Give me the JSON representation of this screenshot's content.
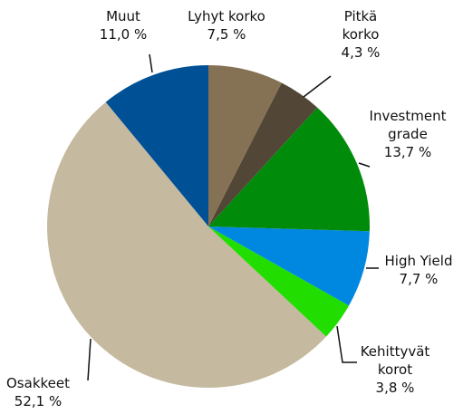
{
  "chart_data": {
    "type": "pie",
    "categories": [
      "Lyhyt korko",
      "Pitkä korko",
      "Investment grade",
      "High Yield",
      "Kehittyvät korot",
      "Osakkeet",
      "Muut"
    ],
    "values": [
      7.5,
      4.3,
      13.7,
      7.7,
      3.8,
      52.1,
      11.0
    ],
    "value_labels": [
      "7,5 %",
      "4,3 %",
      "13,7 %",
      "7,7 %",
      "3,8 %",
      "52,1 %",
      "11,0 %"
    ],
    "colors": [
      "#857153",
      "#524636",
      "#008c0a",
      "#0088e0",
      "#22dd00",
      "#c5b99f",
      "#005096"
    ]
  }
}
